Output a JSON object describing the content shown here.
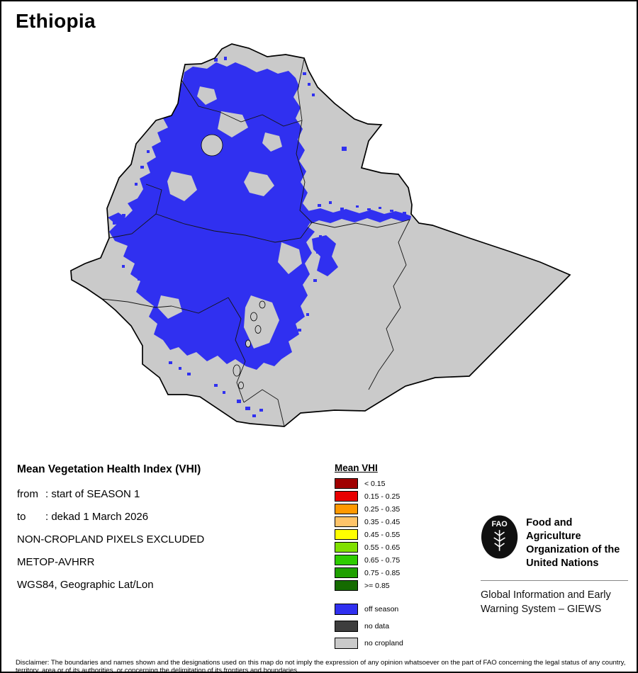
{
  "title": "Ethiopia",
  "colors": {
    "off_season": "#3030F0",
    "no_data": "#3D3D3D",
    "no_cropland": "#CACACA",
    "country_border": "#000000"
  },
  "info": {
    "heading": "Mean Vegetation Health Index (VHI)",
    "lines": [
      {
        "label": "from",
        "value": ": start of SEASON 1"
      },
      {
        "label": "to",
        "value": ": dekad 1 March 2026"
      },
      {
        "label": "",
        "value": "NON-CROPLAND PIXELS EXCLUDED"
      },
      {
        "label": "",
        "value": "METOP-AVHRR"
      },
      {
        "label": "",
        "value": "WGS84, Geographic Lat/Lon"
      }
    ]
  },
  "legend": {
    "heading": "Mean VHI",
    "vhi_classes": [
      {
        "label": "< 0.15",
        "color": "#A00000"
      },
      {
        "label": "0.15 - 0.25",
        "color": "#E80000"
      },
      {
        "label": "0.25 - 0.35",
        "color": "#FF9900"
      },
      {
        "label": "0.35 - 0.45",
        "color": "#FFC469"
      },
      {
        "label": "0.45 - 0.55",
        "color": "#FFFF00"
      },
      {
        "label": "0.55 - 0.65",
        "color": "#80E000"
      },
      {
        "label": "0.65 - 0.75",
        "color": "#2ECC00"
      },
      {
        "label": "0.75 - 0.85",
        "color": "#1FA000"
      },
      {
        "label": ">= 0.85",
        "color": "#156B00"
      }
    ],
    "other_classes": [
      {
        "label": "off season",
        "color": "#3030F0"
      },
      {
        "label": "no data",
        "color": "#3D3D3D"
      },
      {
        "label": "no cropland",
        "color": "#CACACA"
      }
    ]
  },
  "org": {
    "logo_text": "FAO",
    "name_lines": [
      "Food and Agriculture",
      "Organization of the",
      "United Nations"
    ],
    "subtitle_lines": [
      "Global Information and Early",
      "Warning System – GIEWS"
    ]
  },
  "disclaimer": "Disclaimer: The boundaries and names shown and the designations used on this map do not imply the expression of any opinion whatsoever on the part of FAO concerning the legal status of any country, territory, area or of its authorities, or concerning the delimitation of its frontiers and boundaries."
}
